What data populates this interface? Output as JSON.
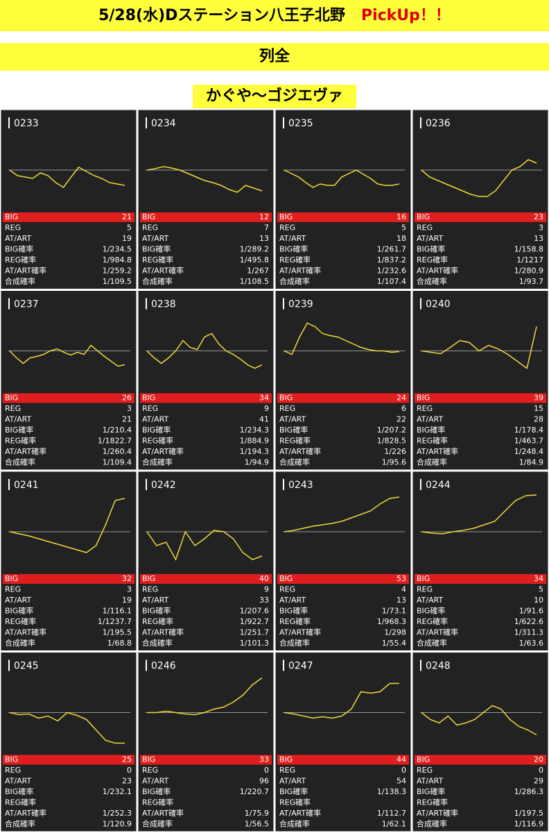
{
  "header": {
    "title": "5/28(水)Dステーション八王子北野",
    "pickup": "PickUp！！"
  },
  "section": "列全",
  "group": "かぐや～ゴジエヴァ",
  "row_labels": [
    "BIG",
    "REG",
    "AT/ART",
    "BIG確率",
    "REG確率",
    "AT/ART確率",
    "合成確率"
  ],
  "machines": [
    {
      "number": "0233",
      "stats": [
        21,
        5,
        19,
        "1/234.5",
        "1/984.8",
        "1/259.2",
        "1/109.5"
      ],
      "graph": [
        0,
        -8,
        -10,
        -12,
        -4,
        -8,
        -18,
        -25,
        -10,
        4,
        -2,
        -8,
        -12,
        -18,
        -20,
        -22
      ]
    },
    {
      "number": "0234",
      "stats": [
        12,
        7,
        13,
        "1/289.2",
        "1/495.8",
        "1/267",
        "1/108.5"
      ],
      "graph": [
        0,
        2,
        5,
        3,
        0,
        -5,
        -10,
        -15,
        -18,
        -22,
        -28,
        -32,
        -22,
        -26,
        -30
      ]
    },
    {
      "number": "0235",
      "stats": [
        16,
        5,
        18,
        "1/261.7",
        "1/837.2",
        "1/232.6",
        "1/107.4"
      ],
      "graph": [
        0,
        -5,
        -10,
        -18,
        -25,
        -20,
        -22,
        -22,
        -10,
        -5,
        0,
        -6,
        -12,
        -20,
        -22,
        -22,
        -20
      ]
    },
    {
      "number": "0236",
      "stats": [
        23,
        3,
        13,
        "1/158.8",
        "1/1217",
        "1/280.9",
        "1/93.7"
      ],
      "graph": [
        0,
        -10,
        -15,
        -20,
        -25,
        -30,
        -35,
        -38,
        -38,
        -30,
        -15,
        0,
        5,
        15,
        10
      ]
    },
    {
      "number": "0237",
      "stats": [
        26,
        3,
        21,
        "1/210.4",
        "1/1822.7",
        "1/260.4",
        "1/109.4"
      ],
      "graph": [
        0,
        -10,
        -18,
        -10,
        -8,
        -5,
        0,
        3,
        -2,
        -6,
        -2,
        -5,
        8,
        0,
        -8,
        -15,
        -22,
        -20
      ]
    },
    {
      "number": "0238",
      "stats": [
        34,
        9,
        41,
        "1/234.3",
        "1/884.9",
        "1/194.3",
        "1/94.9"
      ],
      "graph": [
        0,
        -10,
        -18,
        -10,
        0,
        15,
        5,
        2,
        20,
        25,
        10,
        0,
        -5,
        -12,
        -20,
        -25,
        -20
      ]
    },
    {
      "number": "0239",
      "stats": [
        24,
        6,
        22,
        "1/207.2",
        "1/828.5",
        "1/226",
        "1/95.6"
      ],
      "graph": [
        0,
        -5,
        20,
        40,
        35,
        25,
        22,
        20,
        15,
        10,
        5,
        2,
        0,
        0,
        -2,
        -1
      ]
    },
    {
      "number": "0240",
      "stats": [
        39,
        15,
        28,
        "1/178.4",
        "1/463.7",
        "1/248.4",
        "1/84.9"
      ],
      "graph": [
        0,
        -2,
        -4,
        5,
        15,
        12,
        0,
        8,
        3,
        -5,
        -15,
        -25,
        35
      ]
    },
    {
      "number": "0241",
      "stats": [
        32,
        3,
        19,
        "1/116.1",
        "1/1237.7",
        "1/195.5",
        "1/68.8"
      ],
      "graph": [
        0,
        -3,
        -6,
        -10,
        -14,
        -18,
        -22,
        -26,
        -30,
        -20,
        10,
        45,
        48
      ]
    },
    {
      "number": "0242",
      "stats": [
        40,
        9,
        33,
        "1/207.6",
        "1/922.7",
        "1/251.7",
        "1/101.3"
      ],
      "graph": [
        0,
        -20,
        -15,
        -40,
        0,
        -20,
        -10,
        2,
        0,
        -10,
        -30,
        -40,
        -35
      ]
    },
    {
      "number": "0243",
      "stats": [
        53,
        4,
        13,
        "1/73.1",
        "1/968.3",
        "1/298",
        "1/55.4"
      ],
      "graph": [
        0,
        2,
        5,
        8,
        10,
        12,
        15,
        20,
        25,
        30,
        40,
        48,
        50
      ]
    },
    {
      "number": "0244",
      "stats": [
        34,
        5,
        10,
        "1/91.6",
        "1/622.6",
        "1/311.3",
        "1/63.6"
      ],
      "graph": [
        0,
        -2,
        -3,
        0,
        2,
        5,
        10,
        15,
        30,
        45,
        52,
        53
      ]
    },
    {
      "number": "0245",
      "stats": [
        25,
        0,
        23,
        "1/232.1",
        null,
        "1/252.3",
        "1/120.9"
      ],
      "graph": [
        0,
        -3,
        -2,
        -8,
        -5,
        -12,
        0,
        -4,
        -10,
        -25,
        -40,
        -44,
        -44
      ]
    },
    {
      "number": "0246",
      "stats": [
        33,
        0,
        96,
        "1/220.7",
        null,
        "1/75.9",
        "1/56.5"
      ],
      "graph": [
        0,
        0,
        2,
        0,
        -2,
        -3,
        0,
        5,
        8,
        15,
        25,
        40,
        50
      ]
    },
    {
      "number": "0247",
      "stats": [
        44,
        0,
        54,
        "1/138.3",
        null,
        "1/112.7",
        "1/62.1"
      ],
      "graph": [
        0,
        -2,
        -5,
        -8,
        -6,
        -8,
        -5,
        5,
        30,
        28,
        30,
        42,
        42
      ]
    },
    {
      "number": "0248",
      "stats": [
        20,
        0,
        29,
        "1/286.3",
        null,
        "1/197.5",
        "1/116.9"
      ],
      "graph": [
        0,
        -10,
        -15,
        -5,
        -18,
        -15,
        -10,
        0,
        10,
        5,
        -10,
        -20,
        -25,
        -32
      ]
    }
  ]
}
